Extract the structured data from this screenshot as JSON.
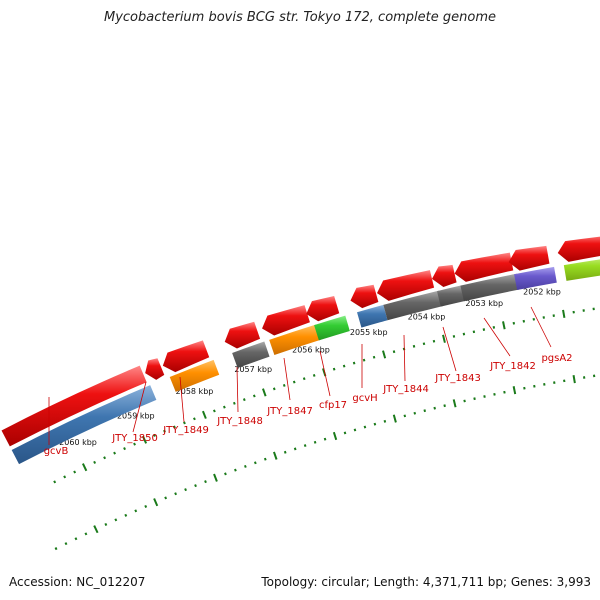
{
  "title": "Mycobacterium bovis BCG str. Tokyo 172, complete genome",
  "footer": {
    "accession": "Accession: NC_012207",
    "topology": "Topology: circular; Length: 4,371,711 bp; Genes: 3,993"
  },
  "kbp_labels": [
    "2060 kbp",
    "2059 kbp",
    "2058 kbp",
    "2057 kbp",
    "2056 kbp",
    "2055 kbp",
    "2054 kbp",
    "2053 kbp",
    "2052 kbp"
  ],
  "gene_labels": [
    "gcvB",
    "JTY_1850",
    "JTY_1849",
    "JTY_1848",
    "JTY_1847",
    "cfp17",
    "gcvH",
    "JTY_1844",
    "JTY_1843",
    "JTY_1842",
    "pgsA2"
  ],
  "colors": {
    "red": "#ee1111",
    "blue": "#3f76b0",
    "orange": "#ff9000",
    "gray": "#666666",
    "green": "#33cc33",
    "purple": "#6a5acd",
    "lime": "#99dd22",
    "tick": "#1a7a1a",
    "label": "#cc0000"
  }
}
